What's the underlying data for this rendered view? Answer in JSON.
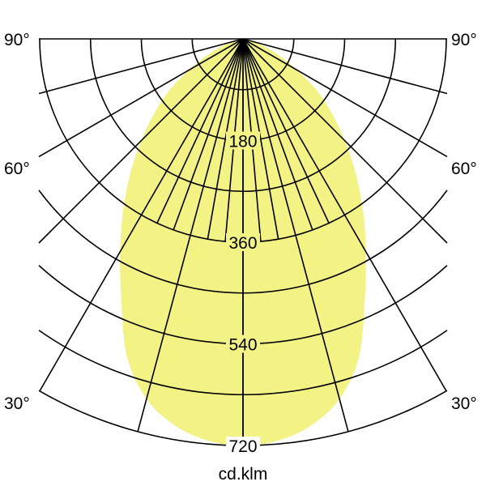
{
  "chart_data": {
    "type": "polar",
    "unit_label": "cd.klm",
    "radial_ticks": [
      180,
      360,
      540,
      720
    ],
    "radial_max": 720,
    "radial_grid_step": 90,
    "angle_labels": [
      "90°",
      "60°",
      "30°"
    ],
    "angles_deg": [
      0,
      5,
      10,
      15,
      20,
      25,
      30,
      35,
      40,
      45,
      50,
      55,
      60,
      65,
      70,
      75,
      80,
      85,
      90
    ],
    "series": [
      {
        "values": [
          720,
          714,
          695,
          660,
          600,
          510,
          435,
          370,
          310,
          255,
          205,
          160,
          110,
          72,
          42,
          20,
          8,
          2,
          0
        ],
        "color": "#f2f285",
        "symmetric": true
      }
    ],
    "grid_color": "#000000"
  }
}
